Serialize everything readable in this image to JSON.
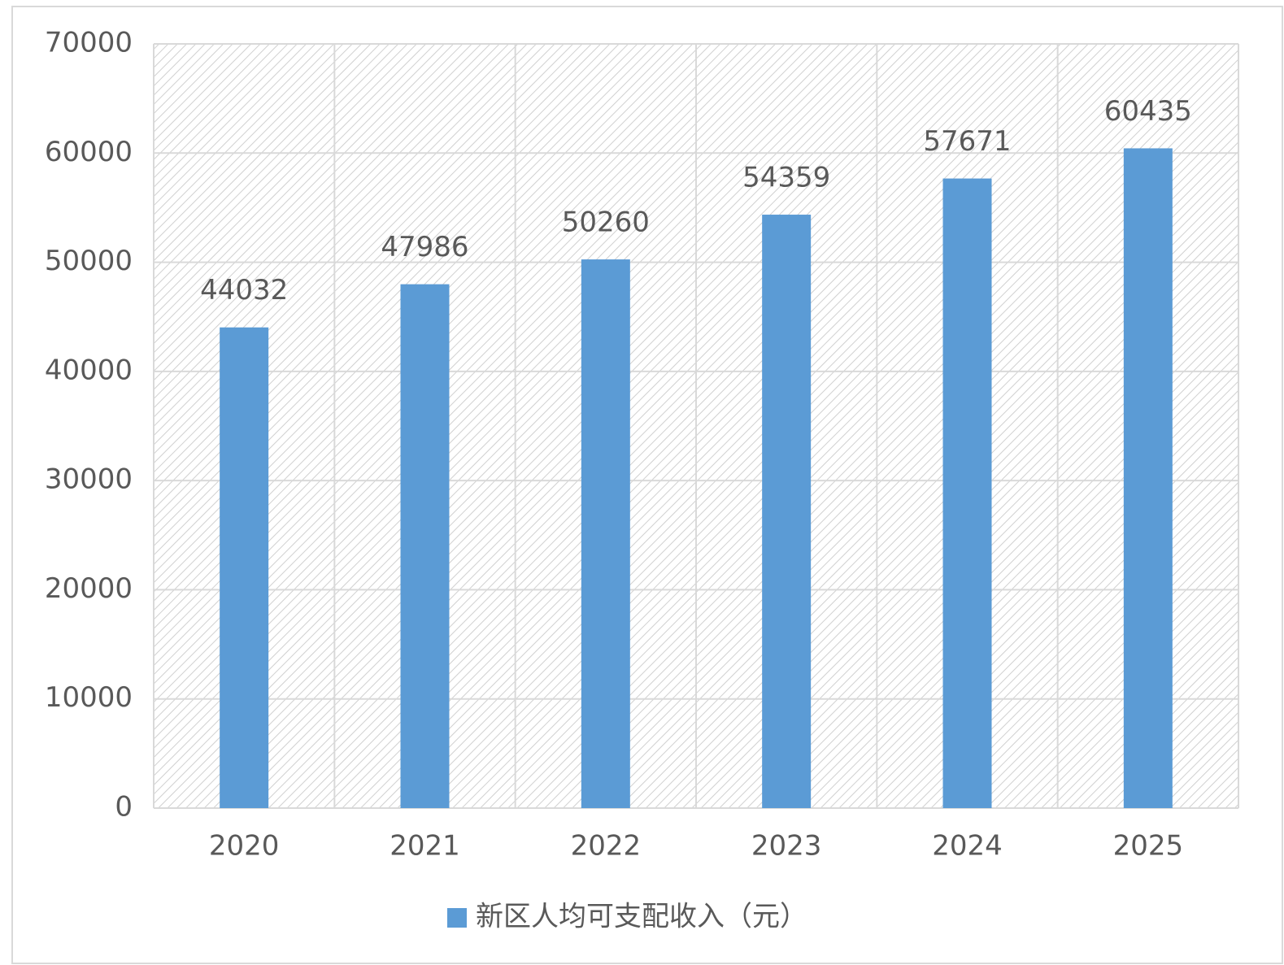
{
  "chart_data": {
    "type": "bar",
    "categories": [
      "2020",
      "2021",
      "2022",
      "2023",
      "2024",
      "2025"
    ],
    "series": [
      {
        "name": "新区人均可支配收入（元）",
        "color": "#5b9bd5",
        "values": [
          44032,
          47986,
          50260,
          54359,
          57671,
          60435
        ]
      }
    ],
    "ylim": [
      0,
      70000
    ],
    "yticks": [
      0,
      10000,
      20000,
      30000,
      40000,
      50000,
      60000,
      70000
    ],
    "grid": true,
    "legend": "bottom",
    "data_labels": true
  }
}
